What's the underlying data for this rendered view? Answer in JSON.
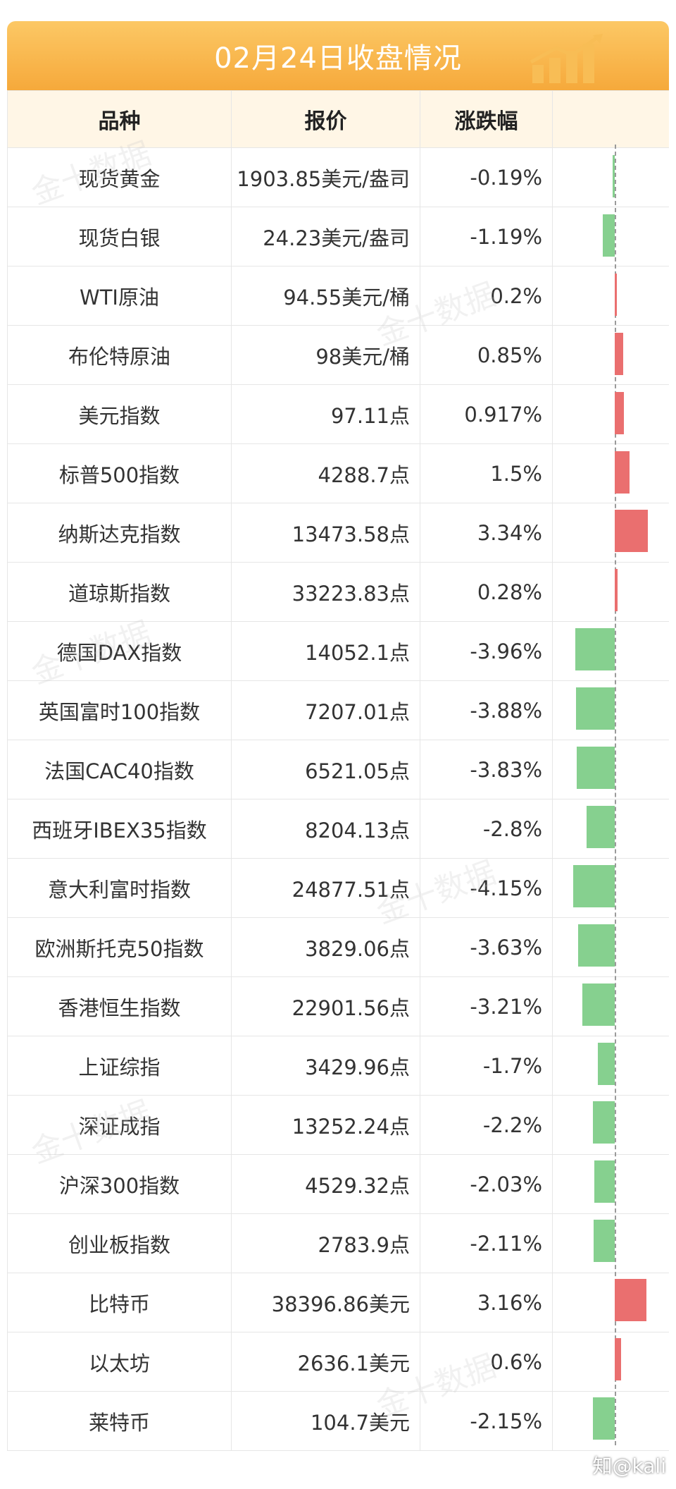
{
  "title": "02月24日收盘情况",
  "headers": {
    "name": "品种",
    "price": "报价",
    "change": "涨跌幅"
  },
  "watermark": "金十数据",
  "credit": "知@kali",
  "colors": {
    "up": "#ea6f6f",
    "down": "#86d08f",
    "title_bg": "#f6a93b",
    "header_bg": "#fff6e6"
  },
  "chart_data": {
    "type": "bar",
    "orientation": "horizontal",
    "title": "02月24日收盘情况",
    "categories": [
      "现货黄金",
      "现货白银",
      "WTI原油",
      "布伦特原油",
      "美元指数",
      "标普500指数",
      "纳斯达克指数",
      "道琼斯指数",
      "德国DAX指数",
      "英国富时100指数",
      "法国CAC40指数",
      "西班牙IBEX35指数",
      "意大利富时指数",
      "欧洲斯托克50指数",
      "香港恒生指数",
      "上证综指",
      "深证成指",
      "沪深300指数",
      "创业板指数",
      "比特币",
      "以太坊",
      "莱特币"
    ],
    "prices": [
      "1903.85美元/盎司",
      "24.23美元/盎司",
      "94.55美元/桶",
      "98美元/桶",
      "97.11点",
      "4288.7点",
      "13473.58点",
      "33223.83点",
      "14052.1点",
      "7207.01点",
      "6521.05点",
      "8204.13点",
      "24877.51点",
      "3829.06点",
      "22901.56点",
      "3429.96点",
      "13252.24点",
      "4529.32点",
      "2783.9点",
      "38396.86美元",
      "2636.1美元",
      "104.7美元"
    ],
    "change_labels": [
      "-0.19%",
      "-1.19%",
      "0.2%",
      "0.85%",
      "0.917%",
      "1.5%",
      "3.34%",
      "0.28%",
      "-3.96%",
      "-3.88%",
      "-3.83%",
      "-2.8%",
      "-4.15%",
      "-3.63%",
      "-3.21%",
      "-1.7%",
      "-2.2%",
      "-2.03%",
      "-2.11%",
      "3.16%",
      "0.6%",
      "-2.15%"
    ],
    "values": [
      -0.19,
      -1.19,
      0.2,
      0.85,
      0.917,
      1.5,
      3.34,
      0.28,
      -3.96,
      -3.88,
      -3.83,
      -2.8,
      -4.15,
      -3.63,
      -3.21,
      -1.7,
      -2.2,
      -2.03,
      -2.11,
      3.16,
      0.6,
      -2.15
    ],
    "unit": "%"
  }
}
